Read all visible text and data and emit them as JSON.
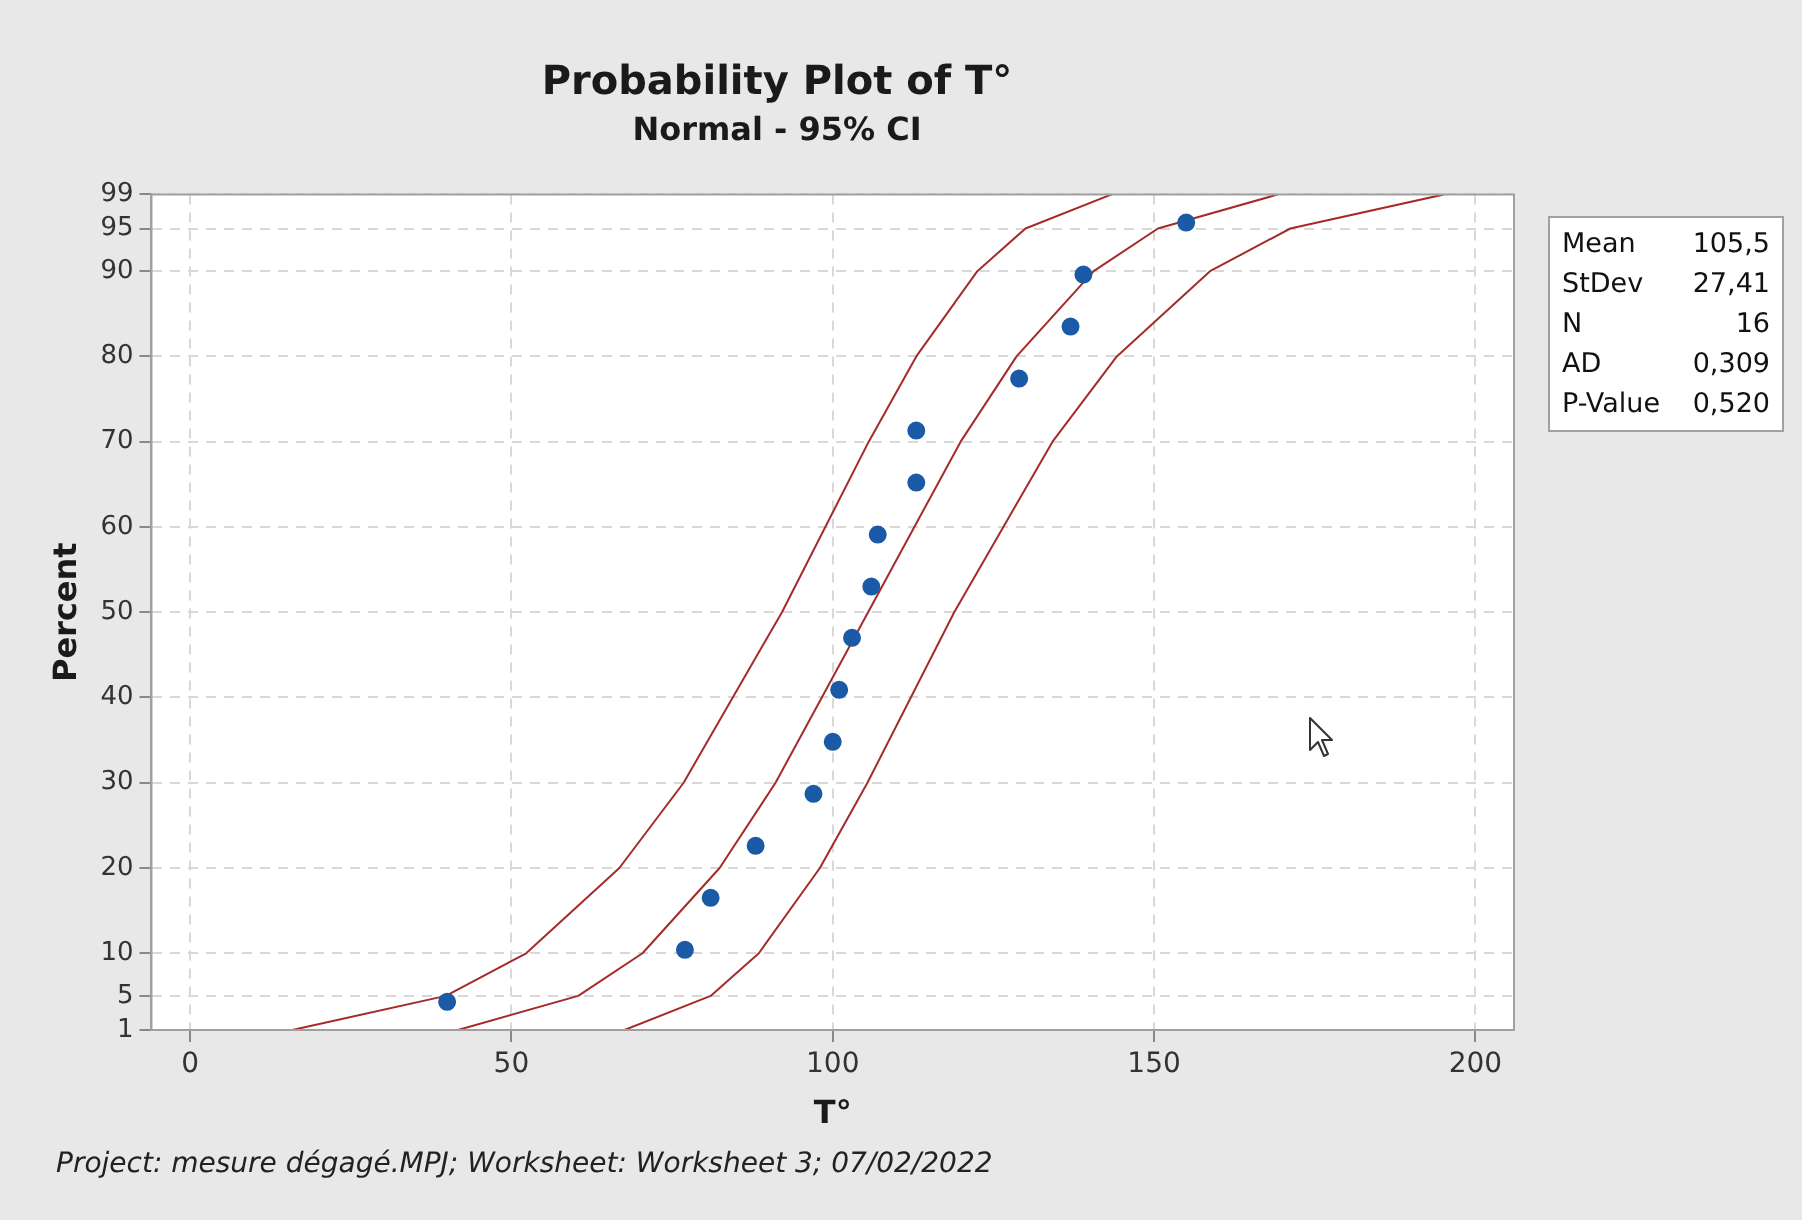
{
  "chart_data": {
    "type": "scatter",
    "title": "Probability Plot of T°",
    "subtitle": "Normal - 95% CI",
    "xlabel": "T°",
    "ylabel": "Percent",
    "xlim": [
      -6,
      206
    ],
    "xticks": [
      0,
      50,
      100,
      150,
      200
    ],
    "ylim": [
      1,
      99
    ],
    "yticks": [
      1,
      5,
      10,
      20,
      30,
      40,
      50,
      60,
      70,
      80,
      90,
      95,
      99
    ],
    "grid": true,
    "line_style": "solid",
    "series": [
      {
        "color": "#1a5aa6",
        "marker": "circle",
        "x": [
          40,
          77,
          81,
          88,
          97,
          100,
          101,
          103,
          106,
          107,
          113,
          113,
          129,
          137,
          139,
          155
        ],
        "values": [
          4.3,
          10.4,
          16.5,
          22.6,
          28.7,
          34.8,
          40.9,
          47,
          53,
          59.1,
          65.2,
          71.3,
          77.4,
          83.5,
          89.6,
          95.7
        ]
      },
      {
        "type": "line",
        "color": "#a52a2a",
        "x": [
          41.7,
          60.4,
          70.4,
          82.4,
          91.1,
          105.5,
          119.9,
          128.6,
          140.6,
          150.6,
          169.3
        ],
        "values": [
          1,
          5,
          10,
          20,
          30,
          50,
          70,
          80,
          90,
          95,
          99
        ]
      },
      {
        "type": "line",
        "color": "#a52a2a",
        "x": [
          15.9,
          39.8,
          52.3,
          66.8,
          76.8,
          92.1,
          105.6,
          113,
          122.5,
          130,
          143.4
        ],
        "values": [
          1,
          5,
          10,
          20,
          30,
          50,
          70,
          80,
          90,
          95,
          99
        ]
      },
      {
        "type": "line",
        "color": "#a52a2a",
        "x": [
          67.6,
          81,
          88.5,
          98,
          105.4,
          118.9,
          134.2,
          144.2,
          158.7,
          171.2,
          195.1
        ],
        "values": [
          1,
          5,
          10,
          20,
          30,
          50,
          70,
          80,
          90,
          95,
          99
        ]
      }
    ],
    "annotations": [
      "Mean 105,5",
      "StDev 27,41",
      "N 16",
      "AD 0,309",
      "P-Value 0,520",
      "Project: mesure dégagé.MPJ; Worksheet: Worksheet 3; 07/02/2022"
    ]
  }
}
